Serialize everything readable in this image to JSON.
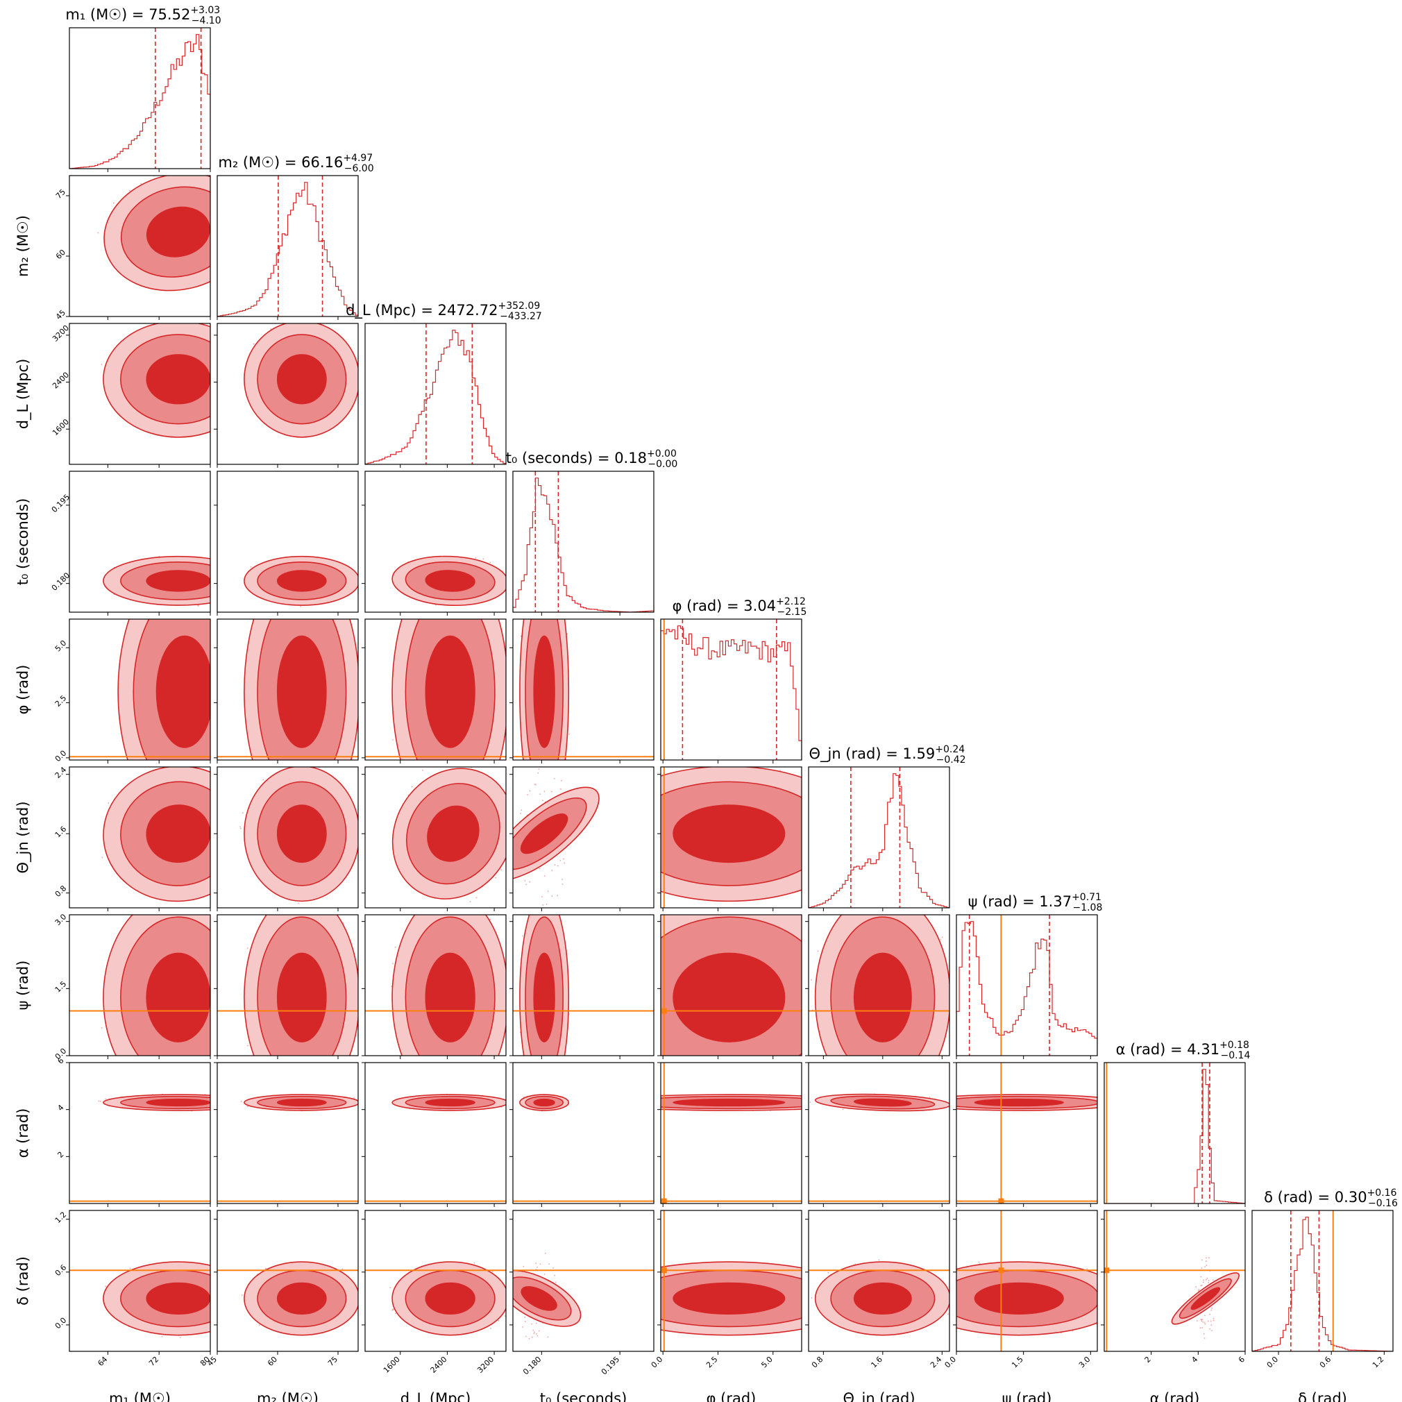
{
  "chart_data": {
    "type": "corner",
    "colors": {
      "posterior": "#d62728",
      "truth": "#ff7f0e"
    },
    "grid": false,
    "params": [
      {
        "label": "m₁ (M☉)",
        "title": {
          "name": "m₁ (M☉)",
          "value": "75.52",
          "plus": "+3.03",
          "minus": "−4.10"
        },
        "range": [
          58,
          80
        ],
        "ticks": [
          64,
          72,
          80
        ],
        "quantiles": [
          71.42,
          78.55
        ],
        "truth": null
      },
      {
        "label": "m₂ (M☉)",
        "title": {
          "name": "m₂ (M☉)",
          "value": "66.16",
          "plus": "+4.97",
          "minus": "−6.00"
        },
        "range": [
          45,
          80
        ],
        "ticks": [
          45,
          60,
          75
        ],
        "quantiles": [
          60.16,
          71.13
        ],
        "truth": null
      },
      {
        "label": "d_L (Mpc)",
        "title": {
          "name": "d_L (Mpc)",
          "value": "2472.72",
          "plus": "+352.09",
          "minus": "−433.27"
        },
        "range": [
          1000,
          3400
        ],
        "ticks": [
          1600,
          2400,
          3200
        ],
        "quantiles": [
          2039.45,
          2824.81
        ],
        "truth": null
      },
      {
        "label": "t₀ (seconds)",
        "title": {
          "name": "t₀ (seconds)",
          "value": "0.18",
          "plus": "+0.00",
          "minus": "−0.00"
        },
        "range": [
          0.1745,
          0.2015
        ],
        "ticks": [
          0.18,
          0.195
        ],
        "tick_labels": [
          "0.180",
          "0.195"
        ],
        "quantiles": [
          0.1788,
          0.1832
        ],
        "truth": null
      },
      {
        "label": "φ (rad)",
        "title": {
          "name": "φ (rad)",
          "value": "3.04",
          "plus": "+2.12",
          "minus": "−2.15"
        },
        "range": [
          -0.1,
          6.3
        ],
        "ticks": [
          0.0,
          2.5,
          5.0
        ],
        "tick_labels": [
          "0.0",
          "2.5",
          "5.0"
        ],
        "quantiles": [
          0.89,
          5.16
        ],
        "truth": 0.05
      },
      {
        "label": "Θ_jn (rad)",
        "title": {
          "name": "Θ_jn (rad)",
          "value": "1.59",
          "plus": "+0.24",
          "minus": "−0.42"
        },
        "range": [
          0.6,
          2.5
        ],
        "ticks": [
          0.8,
          1.6,
          2.4
        ],
        "tick_labels": [
          "0.8",
          "1.6",
          "2.4"
        ],
        "quantiles": [
          1.17,
          1.83
        ],
        "truth": null
      },
      {
        "label": "ψ (rad)",
        "title": {
          "name": "ψ (rad)",
          "value": "1.37",
          "plus": "+0.71",
          "minus": "−1.08"
        },
        "range": [
          0.0,
          3.15
        ],
        "ticks": [
          0.0,
          1.5,
          3.0
        ],
        "tick_labels": [
          "0.0",
          "1.5",
          "3.0"
        ],
        "quantiles": [
          0.29,
          2.08
        ],
        "truth": 1.0
      },
      {
        "label": "α (rad)",
        "title": {
          "name": "α (rad)",
          "value": "4.31",
          "plus": "+0.18",
          "minus": "−0.14"
        },
        "range": [
          0.0,
          6.0
        ],
        "ticks": [
          2,
          4,
          6
        ],
        "quantiles": [
          4.17,
          4.49
        ],
        "truth": 0.1
      },
      {
        "label": "δ (rad)",
        "title": {
          "name": "δ (rad)",
          "value": "0.30",
          "plus": "+0.16",
          "minus": "−0.16"
        },
        "range": [
          -0.3,
          1.3
        ],
        "ticks": [
          0.0,
          0.6,
          1.2
        ],
        "tick_labels": [
          "0.0",
          "0.6",
          "1.2"
        ],
        "quantiles": [
          0.14,
          0.46
        ],
        "truth": 0.62
      }
    ],
    "marginals": [
      {
        "param": 0,
        "x": [
          58,
          60,
          62,
          64,
          66,
          68,
          70,
          72,
          74,
          76,
          78,
          80
        ],
        "density": [
          0.0,
          0.01,
          0.02,
          0.06,
          0.12,
          0.22,
          0.36,
          0.55,
          0.75,
          0.92,
          1.0,
          0.6
        ]
      },
      {
        "param": 1,
        "x": [
          45,
          50,
          54,
          57,
          60,
          63,
          66,
          68,
          71,
          74,
          77,
          80
        ],
        "density": [
          0.0,
          0.03,
          0.08,
          0.2,
          0.45,
          0.8,
          1.0,
          0.92,
          0.6,
          0.3,
          0.08,
          0.0
        ]
      },
      {
        "param": 2,
        "x": [
          1000,
          1300,
          1600,
          1800,
          2000,
          2200,
          2400,
          2600,
          2800,
          3000,
          3200,
          3400
        ],
        "density": [
          0.0,
          0.04,
          0.1,
          0.2,
          0.42,
          0.7,
          0.9,
          1.0,
          0.8,
          0.35,
          0.06,
          0.0
        ]
      },
      {
        "param": 3,
        "x": [
          0.1745,
          0.177,
          0.179,
          0.181,
          0.183,
          0.185,
          0.188,
          0.192,
          0.197,
          0.2015
        ],
        "density": [
          0.0,
          0.3,
          0.95,
          0.9,
          0.45,
          0.12,
          0.03,
          0.01,
          0.0,
          0.01
        ]
      },
      {
        "param": 4,
        "x": [
          -0.1,
          0.2,
          1.0,
          2.0,
          3.0,
          4.0,
          5.0,
          5.8,
          6.1,
          6.3
        ],
        "density": [
          0.9,
          0.95,
          0.85,
          0.8,
          0.78,
          0.8,
          0.77,
          0.78,
          0.4,
          0.0
        ]
      },
      {
        "param": 5,
        "x": [
          0.6,
          0.8,
          1.0,
          1.2,
          1.4,
          1.6,
          1.7,
          1.8,
          1.9,
          2.1,
          2.3,
          2.5
        ],
        "density": [
          0.0,
          0.03,
          0.12,
          0.3,
          0.33,
          0.4,
          0.85,
          1.0,
          0.65,
          0.15,
          0.03,
          0.0
        ]
      },
      {
        "param": 6,
        "x": [
          0.0,
          0.15,
          0.35,
          0.6,
          0.9,
          1.2,
          1.5,
          1.8,
          2.0,
          2.2,
          2.5,
          2.8,
          3.15
        ],
        "density": [
          0.1,
          0.7,
          0.75,
          0.3,
          0.13,
          0.12,
          0.25,
          0.6,
          0.65,
          0.2,
          0.15,
          0.14,
          0.1
        ]
      },
      {
        "param": 7,
        "x": [
          0.0,
          3.8,
          4.1,
          4.2,
          4.3,
          4.4,
          4.5,
          4.7,
          6.0
        ],
        "density": [
          0.0,
          0.0,
          0.3,
          0.75,
          1.0,
          0.8,
          0.35,
          0.02,
          0.0
        ]
      },
      {
        "param": 8,
        "x": [
          -0.3,
          0.0,
          0.1,
          0.2,
          0.3,
          0.4,
          0.5,
          0.6,
          0.8,
          1.3
        ],
        "density": [
          0.0,
          0.05,
          0.2,
          0.6,
          1.0,
          0.7,
          0.2,
          0.05,
          0.01,
          0.0
        ]
      }
    ],
    "joint_2d": [
      {
        "x": 0,
        "y": 1,
        "center": [
          75,
          66
        ],
        "sd": [
          4.5,
          5.5
        ],
        "rho": 0.3
      },
      {
        "x": 0,
        "y": 2,
        "center": [
          75,
          2450
        ],
        "sd": [
          4.5,
          380
        ],
        "rho": 0.0
      },
      {
        "x": 1,
        "y": 2,
        "center": [
          66,
          2450
        ],
        "sd": [
          5.5,
          380
        ],
        "rho": 0.0
      },
      {
        "x": 0,
        "y": 3,
        "center": [
          75,
          0.1805
        ],
        "sd": [
          4.5,
          0.0018
        ],
        "rho": 0.0
      },
      {
        "x": 1,
        "y": 3,
        "center": [
          66,
          0.1805
        ],
        "sd": [
          5.5,
          0.0018
        ],
        "rho": 0.0
      },
      {
        "x": 2,
        "y": 3,
        "center": [
          2450,
          0.1805
        ],
        "sd": [
          380,
          0.0018
        ],
        "rho": -0.1
      },
      {
        "x": 0,
        "y": 4,
        "center": [
          76,
          3.0
        ],
        "sd": [
          4.0,
          2.3
        ],
        "rho": 0.0
      },
      {
        "x": 1,
        "y": 4,
        "center": [
          66,
          3.0
        ],
        "sd": [
          5.5,
          2.3
        ],
        "rho": 0.0
      },
      {
        "x": 2,
        "y": 4,
        "center": [
          2450,
          3.0
        ],
        "sd": [
          380,
          2.3
        ],
        "rho": 0.0
      },
      {
        "x": 3,
        "y": 4,
        "center": [
          0.1805,
          3.0
        ],
        "sd": [
          0.0018,
          2.3
        ],
        "rho": 0.0
      },
      {
        "x": 0,
        "y": 5,
        "center": [
          75,
          1.6
        ],
        "sd": [
          4.5,
          0.35
        ],
        "rho": 0.1
      },
      {
        "x": 1,
        "y": 5,
        "center": [
          66,
          1.6
        ],
        "sd": [
          5.5,
          0.35
        ],
        "rho": 0.0
      },
      {
        "x": 2,
        "y": 5,
        "center": [
          2500,
          1.6
        ],
        "sd": [
          380,
          0.35
        ],
        "rho": -0.5
      },
      {
        "x": 3,
        "y": 5,
        "center": [
          0.1805,
          1.6
        ],
        "sd": [
          0.0018,
          0.35
        ],
        "rho": -0.45
      },
      {
        "x": 4,
        "y": 5,
        "center": [
          3.0,
          1.6
        ],
        "sd": [
          2.3,
          0.35
        ],
        "rho": 0.0
      },
      {
        "x": 0,
        "y": 6,
        "center": [
          75,
          1.3
        ],
        "sd": [
          4.5,
          0.9
        ],
        "rho": 0.0
      },
      {
        "x": 1,
        "y": 6,
        "center": [
          66,
          1.3
        ],
        "sd": [
          5.5,
          0.9
        ],
        "rho": 0.0
      },
      {
        "x": 2,
        "y": 6,
        "center": [
          2450,
          1.3
        ],
        "sd": [
          380,
          0.9
        ],
        "rho": 0.0
      },
      {
        "x": 3,
        "y": 6,
        "center": [
          0.1805,
          1.3
        ],
        "sd": [
          0.0018,
          0.9
        ],
        "rho": 0.0
      },
      {
        "x": 4,
        "y": 6,
        "center": [
          3.0,
          1.3
        ],
        "sd": [
          2.3,
          0.9
        ],
        "rho": 0.0
      },
      {
        "x": 5,
        "y": 6,
        "center": [
          1.6,
          1.3
        ],
        "sd": [
          0.35,
          0.9
        ],
        "rho": 0.0
      },
      {
        "x": 0,
        "y": 7,
        "center": [
          75,
          4.3
        ],
        "sd": [
          4.5,
          0.13
        ],
        "rho": 0.0
      },
      {
        "x": 1,
        "y": 7,
        "center": [
          66,
          4.3
        ],
        "sd": [
          5.5,
          0.13
        ],
        "rho": 0.0
      },
      {
        "x": 2,
        "y": 7,
        "center": [
          2450,
          4.3
        ],
        "sd": [
          380,
          0.13
        ],
        "rho": 0.0
      },
      {
        "x": 3,
        "y": 7,
        "center": [
          0.1805,
          4.3
        ],
        "sd": [
          0.0018,
          0.13
        ],
        "rho": 0.0
      },
      {
        "x": 4,
        "y": 7,
        "center": [
          3.0,
          4.3
        ],
        "sd": [
          2.3,
          0.13
        ],
        "rho": 0.0
      },
      {
        "x": 5,
        "y": 7,
        "center": [
          1.6,
          4.3
        ],
        "sd": [
          0.35,
          0.13
        ],
        "rho": -0.3
      },
      {
        "x": 6,
        "y": 7,
        "center": [
          1.4,
          4.3
        ],
        "sd": [
          0.9,
          0.13
        ],
        "rho": 0.0
      },
      {
        "x": 0,
        "y": 8,
        "center": [
          75,
          0.3
        ],
        "sd": [
          4.5,
          0.16
        ],
        "rho": 0.0
      },
      {
        "x": 1,
        "y": 8,
        "center": [
          66,
          0.3
        ],
        "sd": [
          5.5,
          0.16
        ],
        "rho": 0.0
      },
      {
        "x": 2,
        "y": 8,
        "center": [
          2450,
          0.3
        ],
        "sd": [
          380,
          0.16
        ],
        "rho": 0.0
      },
      {
        "x": 3,
        "y": 8,
        "center": [
          0.1795,
          0.3
        ],
        "sd": [
          0.0015,
          0.2
        ],
        "rho": 0.85
      },
      {
        "x": 4,
        "y": 8,
        "center": [
          3.0,
          0.3
        ],
        "sd": [
          2.3,
          0.16
        ],
        "rho": 0.0
      },
      {
        "x": 5,
        "y": 8,
        "center": [
          1.6,
          0.3
        ],
        "sd": [
          0.35,
          0.16
        ],
        "rho": 0.0
      },
      {
        "x": 6,
        "y": 8,
        "center": [
          1.4,
          0.3
        ],
        "sd": [
          0.9,
          0.16
        ],
        "rho": 0.0
      },
      {
        "x": 7,
        "y": 8,
        "center": [
          4.31,
          0.3
        ],
        "sd": [
          0.15,
          0.18
        ],
        "rho": -0.3
      }
    ]
  }
}
